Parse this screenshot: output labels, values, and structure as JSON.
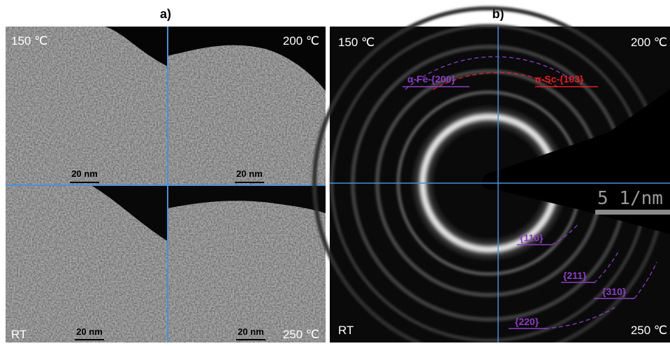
{
  "panel_a": {
    "label": "a)",
    "quadrants": [
      "150 ℃",
      "200 ℃",
      "RT",
      "250 ℃"
    ],
    "scale_bars": [
      "20 nm",
      "20 nm",
      "20 nm",
      "20 nm"
    ]
  },
  "panel_b": {
    "label": "b)",
    "quadrants": [
      "150 ℃",
      "200 ℃",
      "RT",
      "250 ℃"
    ],
    "scale_bar": "5 1/nm",
    "rings": [
      "α-Fe-{200}",
      "α-Sc-{103}",
      "{110}",
      "{211}",
      "{310}",
      "{220}"
    ]
  }
}
